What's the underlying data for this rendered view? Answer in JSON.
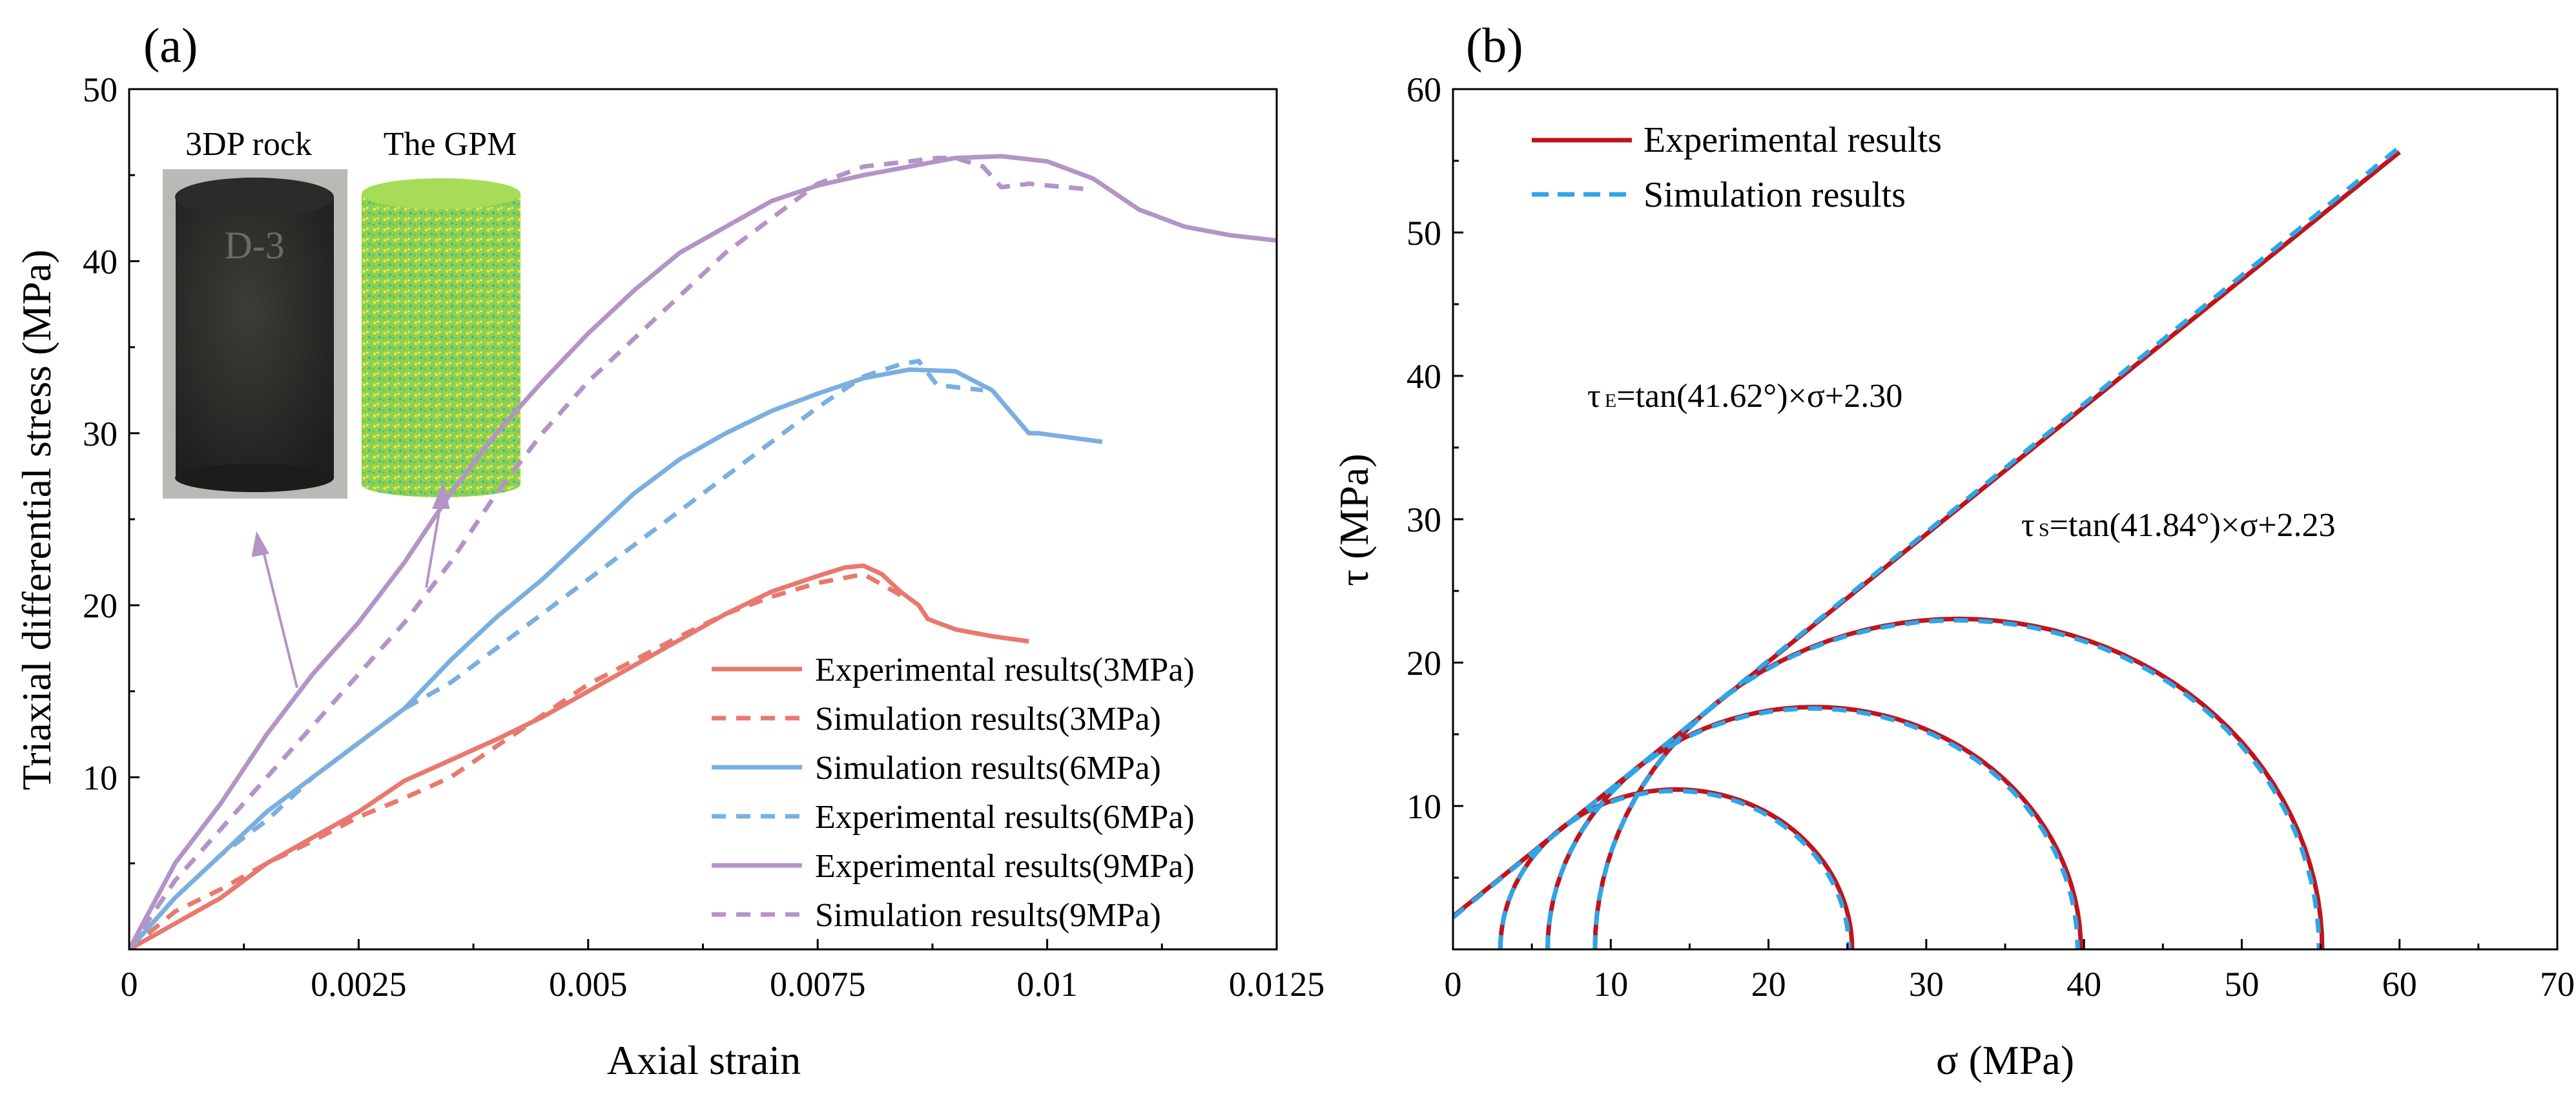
{
  "chart_data": [
    {
      "panel_label": "(a)",
      "type": "line",
      "xlabel": "Axial strain",
      "ylabel": "Triaxial differential stress  (MPa)",
      "xlim": [
        0,
        0.0125
      ],
      "ylim": [
        0,
        50
      ],
      "xticks": [
        0,
        0.0025,
        0.005,
        0.0075,
        0.01,
        0.0125
      ],
      "xtick_labels": [
        "0",
        "0.0025",
        "0.005",
        "0.0075",
        "0.01",
        "0.0125"
      ],
      "yticks": [
        10,
        20,
        30,
        40,
        50
      ],
      "ytick_labels": [
        "10",
        "20",
        "30",
        "40",
        "50"
      ],
      "legend_position": "bottom-right",
      "inset": {
        "left_label": "3DP rock",
        "right_label": "The GPM",
        "specimen_marking": "D-3"
      },
      "series": [
        {
          "name": "Experimental results(3MPa)",
          "color": "#E8796E",
          "dash": "solid",
          "x": [
            0,
            0.0005,
            0.001,
            0.0015,
            0.002,
            0.0025,
            0.003,
            0.0035,
            0.004,
            0.0045,
            0.005,
            0.0055,
            0.006,
            0.0065,
            0.007,
            0.0075,
            0.0078,
            0.008,
            0.0082,
            0.0084,
            0.0086,
            0.0087,
            0.009,
            0.0094,
            0.0098
          ],
          "y": [
            0,
            1.5,
            3.0,
            5.0,
            6.5,
            8.0,
            9.8,
            11.0,
            12.2,
            13.5,
            15.0,
            16.5,
            18.0,
            19.5,
            20.8,
            21.7,
            22.2,
            22.3,
            21.8,
            20.8,
            20.0,
            19.2,
            18.6,
            18.2,
            17.9
          ]
        },
        {
          "name": "Simulation results(3MPa)",
          "color": "#E8796E",
          "dash": "dashed",
          "x": [
            0,
            0.0005,
            0.001,
            0.0015,
            0.002,
            0.0025,
            0.003,
            0.0035,
            0.004,
            0.0045,
            0.005,
            0.0055,
            0.006,
            0.0065,
            0.007,
            0.0075,
            0.008,
            0.0082,
            0.0085
          ],
          "y": [
            0,
            2.2,
            3.5,
            5.0,
            6.3,
            7.7,
            8.8,
            10.0,
            11.8,
            13.6,
            15.4,
            16.8,
            18.2,
            19.5,
            20.5,
            21.3,
            21.8,
            21.2,
            20.3
          ]
        },
        {
          "name": "Simulation results(6MPa)",
          "color": "#7AAFE0",
          "dash": "solid",
          "x": [
            0,
            0.0005,
            0.001,
            0.0015,
            0.002,
            0.0025,
            0.003,
            0.0035,
            0.004,
            0.0045,
            0.005,
            0.0055,
            0.006,
            0.0065,
            0.007,
            0.0075,
            0.008,
            0.0085,
            0.009,
            0.0094,
            0.0098,
            0.0099,
            0.0106
          ],
          "y": [
            0,
            3.0,
            5.5,
            8.0,
            10.0,
            12.0,
            14.0,
            16.8,
            19.3,
            21.5,
            24.0,
            26.5,
            28.5,
            30.0,
            31.3,
            32.3,
            33.2,
            33.7,
            33.6,
            32.5,
            30.0,
            30.0,
            29.5
          ]
        },
        {
          "name": "Experimental results(6MPa)",
          "color": "#7AAFE0",
          "dash": "dashed",
          "x": [
            0,
            0.0005,
            0.001,
            0.0015,
            0.002,
            0.0025,
            0.003,
            0.0035,
            0.004,
            0.0045,
            0.005,
            0.0055,
            0.006,
            0.0065,
            0.007,
            0.0075,
            0.008,
            0.0084,
            0.0086,
            0.0088,
            0.0093
          ],
          "y": [
            0,
            3.0,
            5.5,
            7.5,
            10.0,
            12.0,
            14.0,
            15.5,
            17.5,
            19.5,
            21.5,
            23.5,
            25.5,
            27.5,
            29.5,
            31.5,
            33.3,
            34.0,
            34.2,
            32.8,
            32.5
          ]
        },
        {
          "name": "Experimental results(9MPa)",
          "color": "#B394C7",
          "dash": "solid",
          "x": [
            0,
            0.0005,
            0.001,
            0.0015,
            0.002,
            0.0025,
            0.003,
            0.0035,
            0.004,
            0.0045,
            0.005,
            0.0055,
            0.006,
            0.0065,
            0.007,
            0.0075,
            0.008,
            0.0085,
            0.009,
            0.0095,
            0.01,
            0.0105,
            0.011,
            0.0115,
            0.012,
            0.0125
          ],
          "y": [
            0,
            5.0,
            8.5,
            12.5,
            16.0,
            19.0,
            22.5,
            26.5,
            30.0,
            33.0,
            35.8,
            38.3,
            40.5,
            42.0,
            43.5,
            44.4,
            45.0,
            45.5,
            46.0,
            46.1,
            45.8,
            44.8,
            43.0,
            42.0,
            41.5,
            41.2
          ]
        },
        {
          "name": "Simulation results(9MPa)",
          "color": "#B394C7",
          "dash": "dashed",
          "x": [
            0,
            0.0005,
            0.001,
            0.0015,
            0.002,
            0.0025,
            0.003,
            0.0035,
            0.004,
            0.0045,
            0.005,
            0.0055,
            0.006,
            0.0065,
            0.007,
            0.0075,
            0.008,
            0.0085,
            0.0088,
            0.009,
            0.0093,
            0.0095,
            0.0098,
            0.0104
          ],
          "y": [
            0,
            4.0,
            7.0,
            10.0,
            13.0,
            16.0,
            19.0,
            22.5,
            26.5,
            30.0,
            33.0,
            35.5,
            38.0,
            40.5,
            42.5,
            44.5,
            45.5,
            45.8,
            46.0,
            46.0,
            45.5,
            44.3,
            44.5,
            44.2
          ]
        }
      ]
    },
    {
      "panel_label": "(b)",
      "type": "line",
      "xlabel": "σ (MPa)",
      "ylabel": "τ (MPa)",
      "xlim": [
        0,
        70
      ],
      "ylim": [
        0,
        60
      ],
      "xticks": [
        0,
        10,
        20,
        30,
        40,
        50,
        60,
        70
      ],
      "xtick_labels": [
        "0",
        "10",
        "20",
        "30",
        "40",
        "50",
        "60",
        "70"
      ],
      "yticks": [
        10,
        20,
        30,
        40,
        50,
        60
      ],
      "ytick_labels": [
        "10",
        "20",
        "30",
        "40",
        "50",
        "60"
      ],
      "legend_position": "top-left",
      "legend": [
        {
          "name": "Experimental results",
          "color": "#C0141C",
          "dash": "solid"
        },
        {
          "name": "Simulation results",
          "color": "#2EA5E6",
          "dash": "dashed"
        }
      ],
      "envelopes": {
        "experimental": {
          "slope_deg": 41.62,
          "intercept": 2.3,
          "x_range": [
            0,
            60
          ]
        },
        "simulation": {
          "slope_deg": 41.84,
          "intercept": 2.23,
          "x_range": [
            0,
            60
          ]
        }
      },
      "mohr_circles": [
        {
          "sigma3": 3,
          "sigma1": 25.3
        },
        {
          "sigma3": 6,
          "sigma1": 39.8
        },
        {
          "sigma3": 9,
          "sigma1": 55.1
        }
      ],
      "annotations": {
        "experimental_equation": {
          "symbol": "τ",
          "subscript": "E",
          "text": "=tan(41.62°)×σ+2.30"
        },
        "simulation_equation": {
          "symbol": "τ",
          "subscript": "S",
          "text": "=tan(41.84°)×σ+2.23"
        }
      }
    }
  ]
}
